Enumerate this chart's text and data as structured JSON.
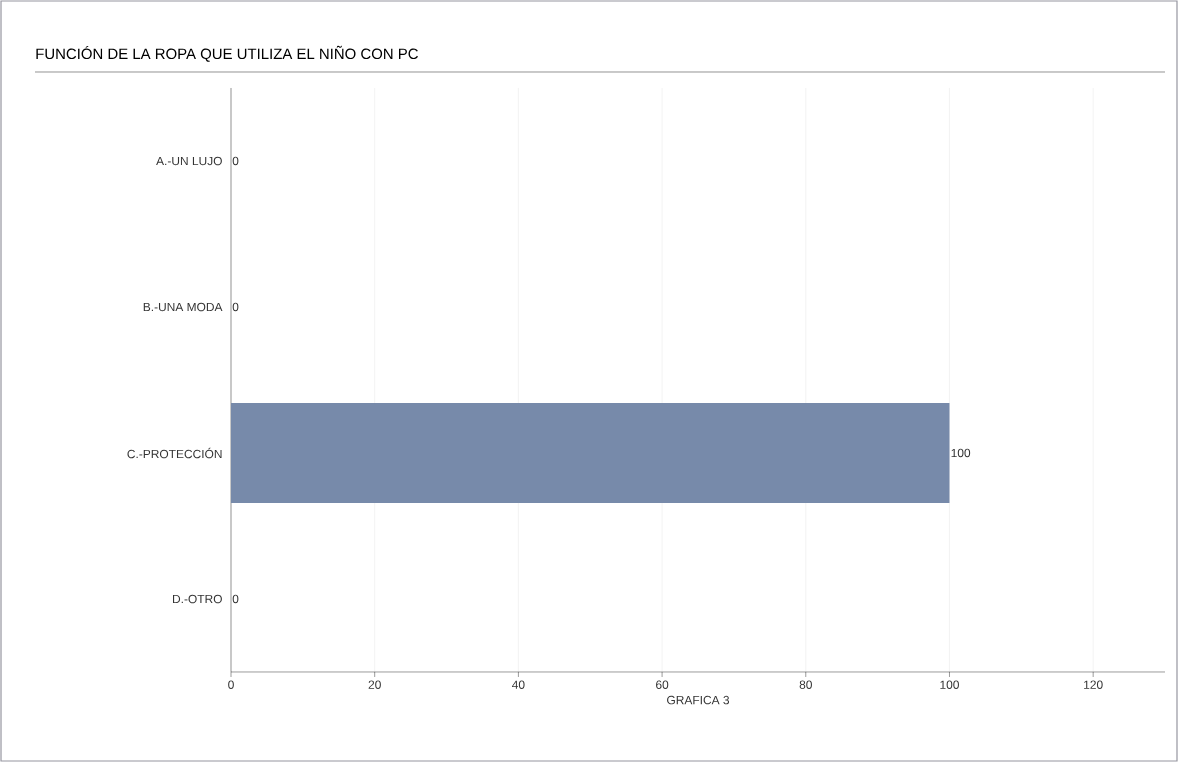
{
  "chart_data": {
    "type": "bar",
    "orientation": "horizontal",
    "title": "FUNCIÓN DE LA ROPA QUE UTILIZA EL NIÑO CON PC",
    "xlabel": "GRAFICA 3",
    "categories": [
      "A.-UN LUJO",
      "B.-UNA MODA",
      "C.-PROTECCIÓN",
      "D.-OTRO"
    ],
    "values": [
      0,
      0,
      100,
      0
    ],
    "color": "#778aaa",
    "xlim": [
      0,
      130
    ],
    "xticks": [
      0,
      20,
      40,
      60,
      80,
      100,
      120
    ],
    "grid": "x",
    "data_labels": true
  }
}
